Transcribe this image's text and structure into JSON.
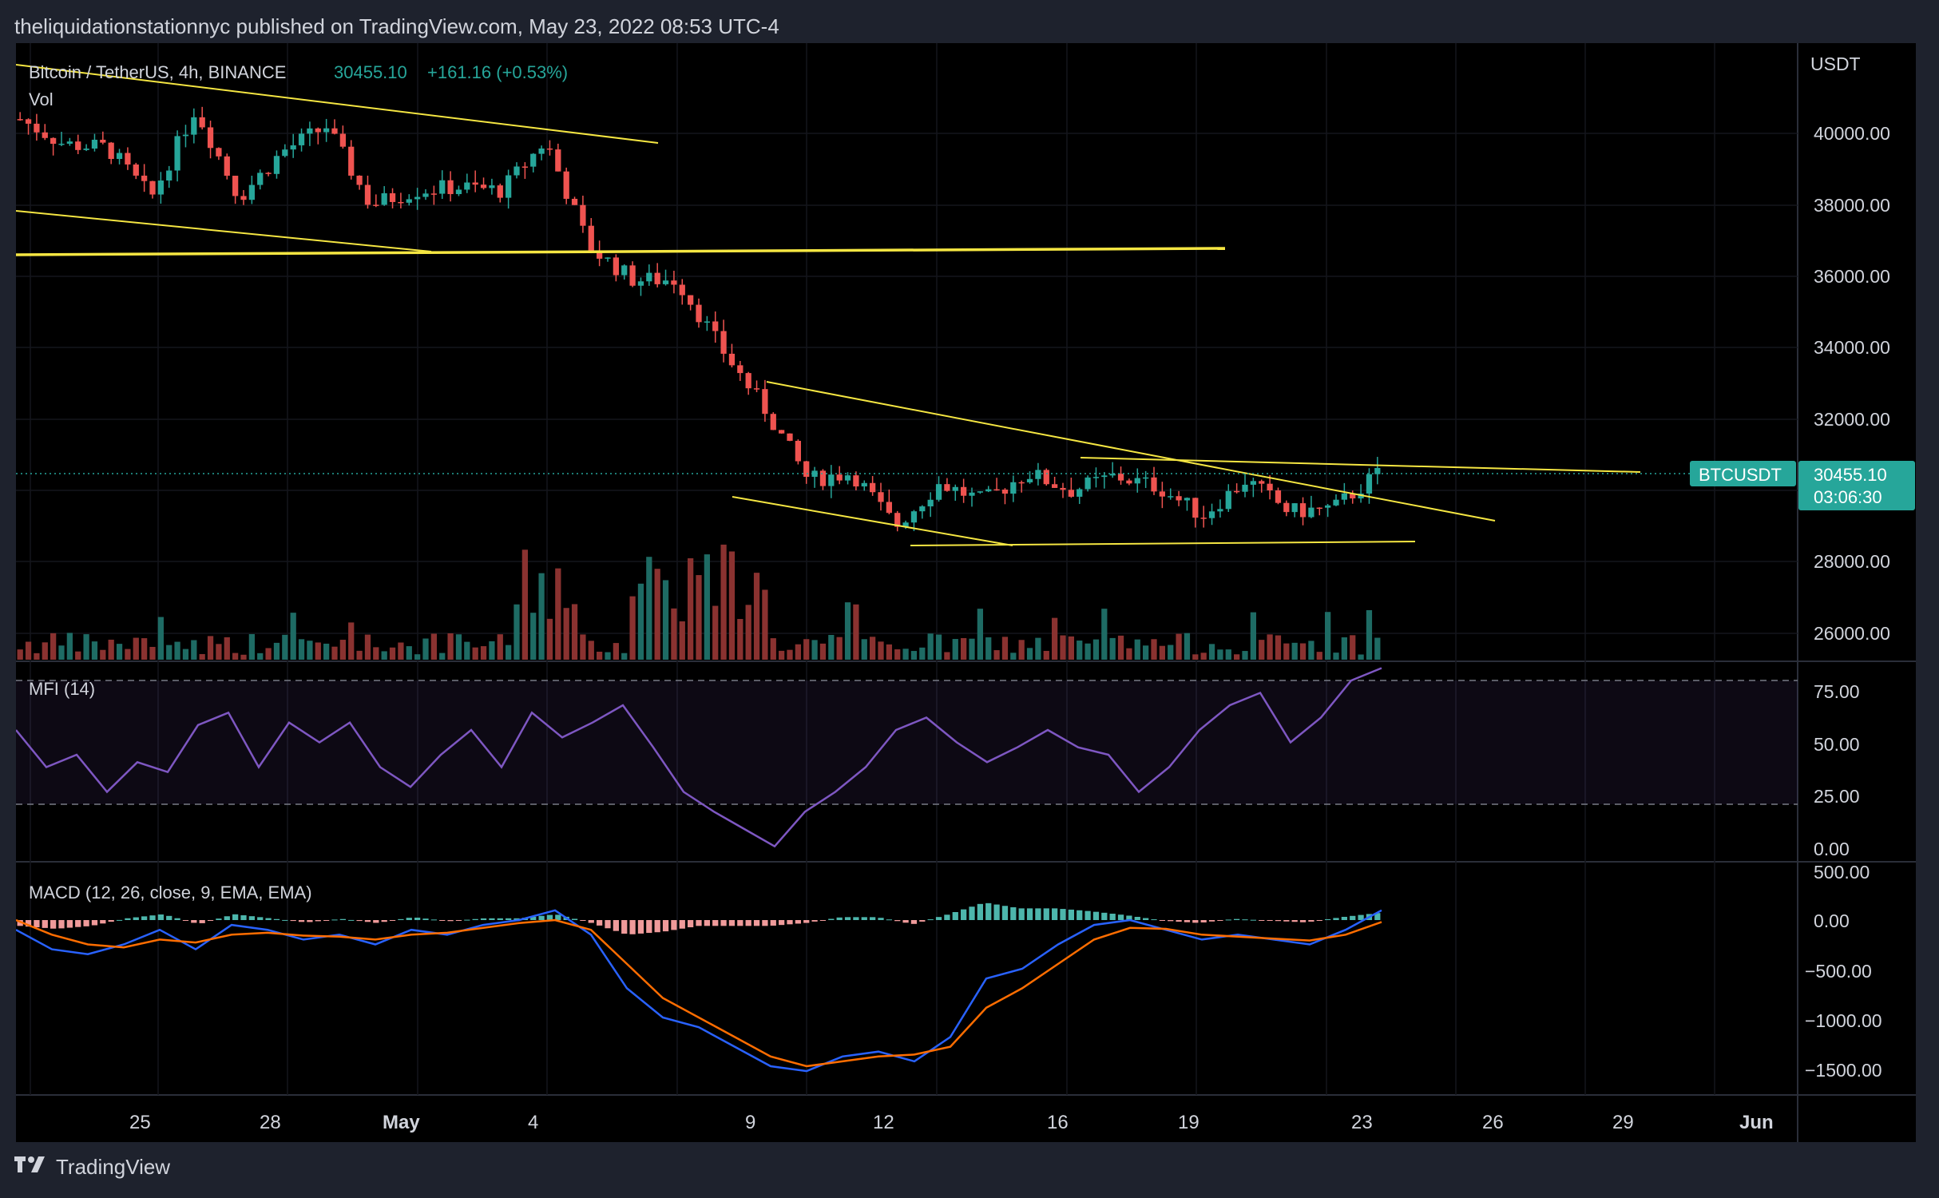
{
  "header": {
    "publisher_line": "theliquidationstationnyc published on TradingView.com, May 23, 2022 08:53 UTC-4"
  },
  "legend": {
    "symbol": "Bitcoin / TetherUS, 4h, BINANCE",
    "price": "30455.10",
    "change": "+161.16 (+0.53%)",
    "vol_label": "Vol"
  },
  "price_scale": {
    "currency": "USDT",
    "ticks": [
      "40000.00",
      "38000.00",
      "36000.00",
      "34000.00",
      "32000.00",
      "28000.00",
      "26000.00"
    ],
    "tag_symbol": "BTCUSDT",
    "tag_price": "30455.10",
    "tag_countdown": "03:06:30"
  },
  "mfi": {
    "label": "MFI (14)",
    "ticks": [
      "75.00",
      "50.00",
      "25.00",
      "0.00"
    ]
  },
  "macd": {
    "label": "MACD (12, 26, close, 9, EMA, EMA)",
    "ticks": [
      "500.00",
      "0.00",
      "−500.00",
      "−1000.00",
      "−1500.00"
    ]
  },
  "time_axis": [
    "25",
    "28",
    "May",
    "4",
    "9",
    "12",
    "16",
    "19",
    "23",
    "26",
    "29",
    "Jun"
  ],
  "footer": {
    "brand": "TradingView"
  },
  "colors": {
    "up": "#26a69a",
    "down": "#ef5350",
    "trendline": "#f5e642",
    "mfi": "#7e57c2",
    "macd": "#2962ff",
    "signal": "#ff6d00",
    "tag": "#26a69a"
  },
  "chart_data": {
    "type": "candlestick",
    "symbol": "BTCUSDT",
    "timeframe": "4h",
    "last_price": 30455.1,
    "y_range": [
      25500,
      41500
    ],
    "price_path": [
      {
        "date": "Apr 22",
        "price": 40400
      },
      {
        "date": "Apr 23",
        "price": 39700
      },
      {
        "date": "Apr 24",
        "price": 39600
      },
      {
        "date": "Apr 25",
        "price": 38200
      },
      {
        "date": "Apr 26",
        "price": 40700
      },
      {
        "date": "Apr 27",
        "price": 38200
      },
      {
        "date": "Apr 28",
        "price": 39500
      },
      {
        "date": "Apr 29",
        "price": 40200
      },
      {
        "date": "Apr 30",
        "price": 38000
      },
      {
        "date": "May 1",
        "price": 38400
      },
      {
        "date": "May 2",
        "price": 38500
      },
      {
        "date": "May 3",
        "price": 38400
      },
      {
        "date": "May 4",
        "price": 39800
      },
      {
        "date": "May 5",
        "price": 36800
      },
      {
        "date": "May 6",
        "price": 35900
      },
      {
        "date": "May 7",
        "price": 35900
      },
      {
        "date": "May 8",
        "price": 34000
      },
      {
        "date": "May 9",
        "price": 32300
      },
      {
        "date": "May 10",
        "price": 30300
      },
      {
        "date": "May 11",
        "price": 30500
      },
      {
        "date": "May 12",
        "price": 29000
      },
      {
        "date": "May 13",
        "price": 30200
      },
      {
        "date": "May 14",
        "price": 29700
      },
      {
        "date": "May 15",
        "price": 30500
      },
      {
        "date": "May 16",
        "price": 30000
      },
      {
        "date": "May 17",
        "price": 30400
      },
      {
        "date": "May 18",
        "price": 30100
      },
      {
        "date": "May 19",
        "price": 29300
      },
      {
        "date": "May 20",
        "price": 30300
      },
      {
        "date": "May 21",
        "price": 29400
      },
      {
        "date": "May 22",
        "price": 29500
      },
      {
        "date": "May 23",
        "price": 30455
      }
    ],
    "mfi_range": [
      0,
      100
    ],
    "mfi_levels": [
      80,
      20
    ],
    "mfi_path": [
      55,
      40,
      45,
      30,
      42,
      38,
      57,
      62,
      40,
      58,
      50,
      58,
      40,
      32,
      45,
      55,
      40,
      62,
      52,
      58,
      65,
      48,
      30,
      22,
      15,
      8,
      22,
      30,
      40,
      55,
      60,
      50,
      42,
      48,
      55,
      48,
      45,
      30,
      40,
      55,
      65,
      70,
      50,
      60,
      75,
      80
    ],
    "macd_range": [
      -1800,
      500
    ],
    "macd_path": [
      -100,
      -300,
      -350,
      -250,
      -100,
      -300,
      -50,
      -100,
      -200,
      -150,
      -250,
      -100,
      -150,
      -50,
      0,
      100,
      -150,
      -700,
      -1000,
      -1100,
      -1300,
      -1500,
      -1550,
      -1400,
      -1350,
      -1450,
      -1200,
      -600,
      -500,
      -250,
      -50,
      0,
      -100,
      -200,
      -150,
      -200,
      -250,
      -100,
      100
    ],
    "signal_path": [
      0,
      -150,
      -250,
      -280,
      -200,
      -230,
      -150,
      -130,
      -160,
      -170,
      -200,
      -150,
      -130,
      -80,
      -30,
      0,
      -100,
      -450,
      -800,
      -1000,
      -1200,
      -1400,
      -1500,
      -1450,
      -1400,
      -1380,
      -1300,
      -900,
      -700,
      -450,
      -200,
      -80,
      -90,
      -150,
      -170,
      -190,
      -210,
      -150,
      -20
    ]
  }
}
